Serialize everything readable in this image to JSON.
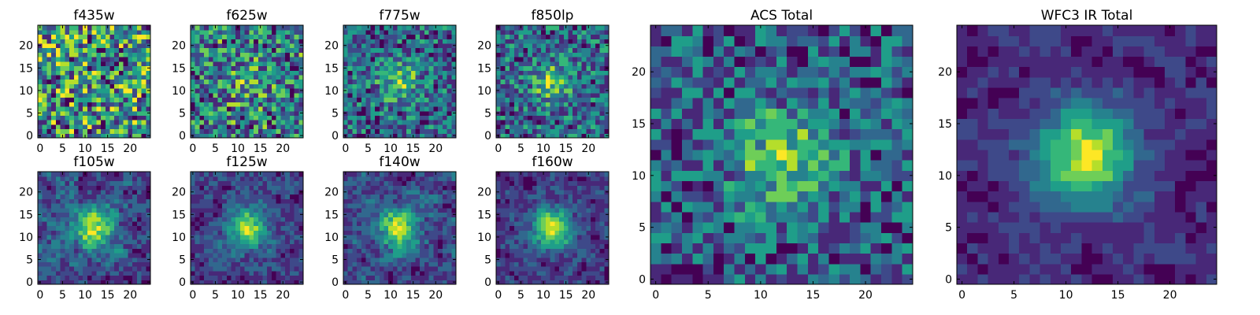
{
  "chart_data": [
    {
      "type": "heatmap",
      "title": "f435w",
      "size": 25,
      "xticks": [
        0,
        5,
        10,
        15,
        20
      ],
      "yticks": [
        0,
        5,
        10,
        15,
        20
      ],
      "colormap": "viridis",
      "peak": 0.0,
      "noise": 0.62,
      "blur": 0,
      "seed": 11
    },
    {
      "type": "heatmap",
      "title": "f625w",
      "size": 25,
      "xticks": [
        0,
        5,
        10,
        15,
        20
      ],
      "yticks": [
        0,
        5,
        10,
        15,
        20
      ],
      "colormap": "viridis",
      "peak": 0.15,
      "noise": 0.55,
      "blur": 0,
      "seed": 23
    },
    {
      "type": "heatmap",
      "title": "f775w",
      "size": 25,
      "xticks": [
        0,
        5,
        10,
        15,
        20
      ],
      "yticks": [
        0,
        5,
        10,
        15,
        20
      ],
      "colormap": "viridis",
      "peak": 0.3,
      "noise": 0.5,
      "blur": 0,
      "seed": 37
    },
    {
      "type": "heatmap",
      "title": "f850lp",
      "size": 25,
      "xticks": [
        0,
        5,
        10,
        15,
        20
      ],
      "yticks": [
        0,
        5,
        10,
        15,
        20
      ],
      "colormap": "viridis",
      "peak": 0.3,
      "noise": 0.5,
      "blur": 0,
      "seed": 41
    },
    {
      "type": "heatmap",
      "title": "f105w",
      "size": 25,
      "xticks": [
        0,
        5,
        10,
        15,
        20
      ],
      "yticks": [
        0,
        5,
        10,
        15,
        20
      ],
      "colormap": "viridis",
      "peak": 0.45,
      "noise": 0.45,
      "blur": 1,
      "seed": 53
    },
    {
      "type": "heatmap",
      "title": "f125w",
      "size": 25,
      "xticks": [
        0,
        5,
        10,
        15,
        20
      ],
      "yticks": [
        0,
        5,
        10,
        15,
        20
      ],
      "colormap": "viridis",
      "peak": 0.55,
      "noise": 0.45,
      "blur": 1,
      "seed": 67
    },
    {
      "type": "heatmap",
      "title": "f140w",
      "size": 25,
      "xticks": [
        0,
        5,
        10,
        15,
        20
      ],
      "yticks": [
        0,
        5,
        10,
        15,
        20
      ],
      "colormap": "viridis",
      "peak": 0.5,
      "noise": 0.45,
      "blur": 1,
      "seed": 71
    },
    {
      "type": "heatmap",
      "title": "f160w",
      "size": 25,
      "xticks": [
        0,
        5,
        10,
        15,
        20
      ],
      "yticks": [
        0,
        5,
        10,
        15,
        20
      ],
      "colormap": "viridis",
      "peak": 0.65,
      "noise": 0.45,
      "blur": 1,
      "seed": 89
    },
    {
      "type": "heatmap",
      "title": "ACS Total",
      "size": 25,
      "xticks": [
        0,
        5,
        10,
        15,
        20
      ],
      "yticks": [
        0,
        5,
        10,
        15,
        20
      ],
      "colormap": "viridis",
      "peak": 0.35,
      "noise": 0.45,
      "blur": 0,
      "seed": 97
    },
    {
      "type": "heatmap",
      "title": "WFC3 IR Total",
      "size": 25,
      "xticks": [
        0,
        5,
        10,
        15,
        20
      ],
      "yticks": [
        0,
        5,
        10,
        15,
        20
      ],
      "colormap": "viridis",
      "peak": 0.85,
      "noise": 0.35,
      "blur": 1,
      "seed": 101
    }
  ],
  "colors": {
    "viridis": [
      "#440154",
      "#482878",
      "#3e4989",
      "#31688e",
      "#26828e",
      "#1f9e89",
      "#35b779",
      "#6ece58",
      "#b5de2b",
      "#fde725"
    ]
  }
}
